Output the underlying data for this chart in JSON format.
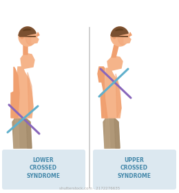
{
  "bg_color": "#ffffff",
  "panel_bg": "#dce8f0",
  "divider_color": "#c8c8c8",
  "skin_light": "#f5b48a",
  "skin_mid": "#f0a070",
  "skin_dark": "#e08050",
  "skin_shadow": "#d07040",
  "shorts_light": "#c0a888",
  "shorts_mid": "#b09878",
  "shorts_dark": "#a08868",
  "hair_color": "#7a5030",
  "hair_dark": "#5a3818",
  "line_purple": "#8866bb",
  "line_blue": "#60b0cc",
  "label_lower": "LOWER\nCROSSED\nSYNDROME",
  "label_upper": "UPPER\nCROSSED\nSYNDROME",
  "label_color": "#4488aa",
  "label_fontsize": 5.5,
  "watermark": "shutterstock.com · 2172276635",
  "watermark_color": "#aaaaaa",
  "watermark_fontsize": 4.0
}
